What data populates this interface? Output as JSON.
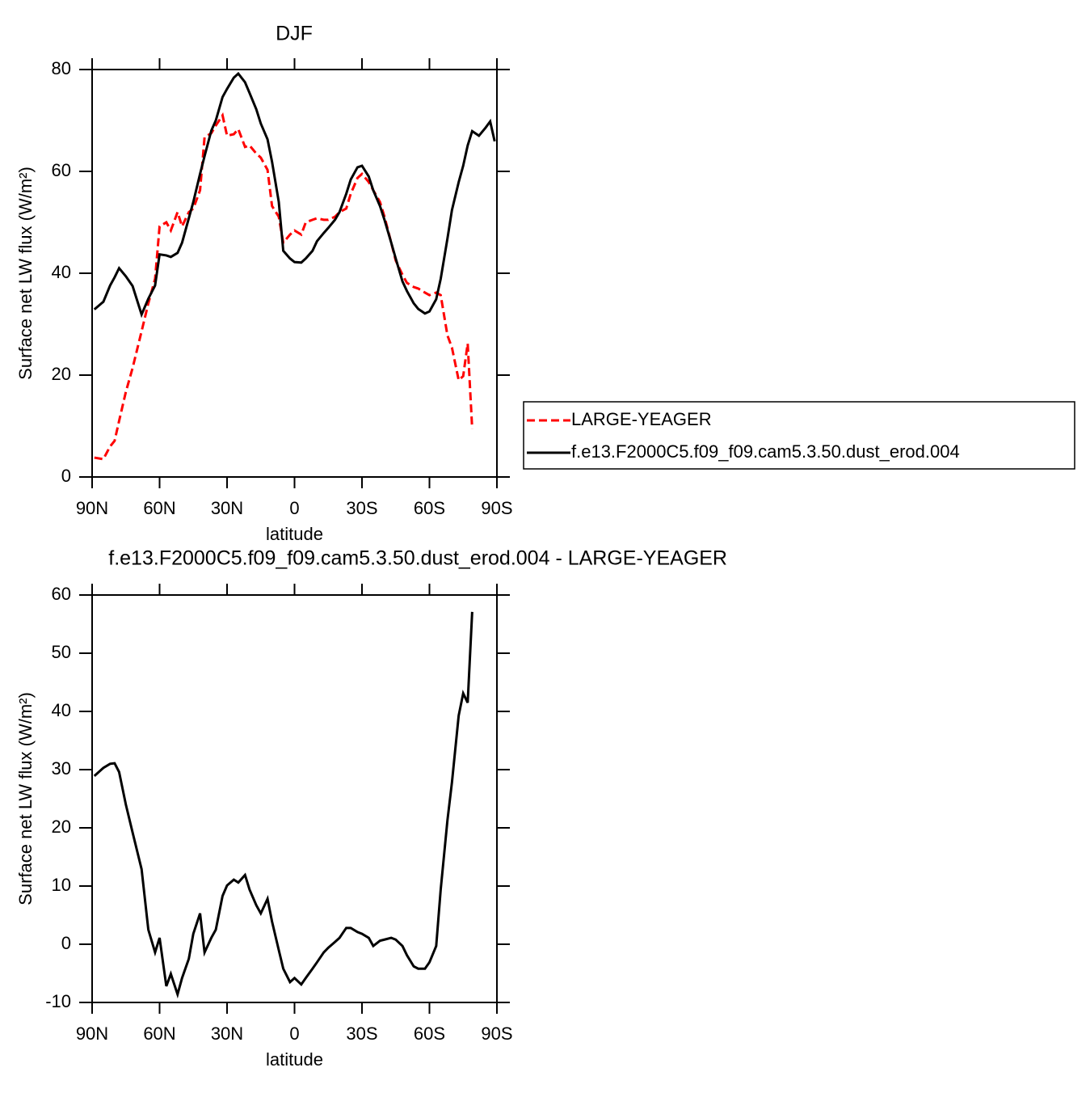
{
  "chart_data": [
    {
      "type": "line",
      "title": "DJF",
      "x_label": "latitude",
      "y_label": "Surface net LW flux (W/m²)",
      "x": [
        89,
        85,
        82,
        80,
        78,
        75,
        72,
        68,
        65,
        62,
        60,
        57,
        55,
        52,
        50,
        47,
        45,
        42,
        40,
        37,
        35,
        32,
        30,
        27,
        25,
        22,
        20,
        17,
        15,
        12,
        10,
        7,
        5,
        2,
        0,
        -3,
        -5,
        -8,
        -10,
        -13,
        -15,
        -18,
        -20,
        -23,
        -25,
        -28,
        -30,
        -33,
        -35,
        -38,
        -40,
        -43,
        -45,
        -48,
        -50,
        -53,
        -55,
        -58,
        -60,
        -63,
        -65,
        -68,
        -70,
        -73,
        -75,
        -77,
        -79,
        -82,
        -85,
        -87,
        -89
      ],
      "series": [
        {
          "name": "LARGE-YEAGER",
          "color": "#ff0000",
          "line_style": "dashed",
          "values": [
            3.8,
            3.5,
            6,
            7.1,
            11,
            16.7,
            21.4,
            28.6,
            34.1,
            38.9,
            49.2,
            50,
            48.4,
            52,
            49.2,
            52,
            52.7,
            56.3,
            66.7,
            67.5,
            69,
            71,
            67,
            67.3,
            68.3,
            64.8,
            65.1,
            63.5,
            62.7,
            60.3,
            53.2,
            51.1,
            46,
            47.6,
            48.4,
            47.6,
            50,
            50.5,
            50.8,
            50.5,
            50.5,
            51.1,
            52,
            52.7,
            55.6,
            58.7,
            59.5,
            57.9,
            56.3,
            54,
            51.1,
            46,
            42.5,
            39.7,
            38.1,
            37.3,
            37,
            36.2,
            35.7,
            36.2,
            35.7,
            27.8,
            25.4,
            19,
            19.8,
            26.2,
            9.5,
            null,
            null,
            null,
            null
          ]
        },
        {
          "name": "f.e13.F2000C5.f09_f09.cam5.3.50.dust_erod.004",
          "color": "#000000",
          "line_style": "solid",
          "values": [
            32.9,
            34.4,
            37.6,
            39.2,
            41,
            39.4,
            37.5,
            31.9,
            35,
            37.6,
            43.7,
            43.5,
            43.2,
            44,
            46,
            50.8,
            54,
            59.5,
            63,
            68,
            70,
            74.6,
            76.2,
            78.4,
            79.2,
            77.5,
            75.4,
            72.2,
            69.4,
            66.3,
            61.9,
            54,
            44.4,
            42.9,
            42.2,
            42.1,
            42.9,
            44.4,
            46.3,
            47.9,
            48.9,
            50.5,
            52,
            55.6,
            58.4,
            60.8,
            61.1,
            59,
            56.3,
            53.2,
            50.5,
            46,
            42.9,
            38.4,
            36.5,
            34.1,
            33,
            32.1,
            32.5,
            34.9,
            38.9,
            46.8,
            52.4,
            57.9,
            61.1,
            65.1,
            67.9,
            67,
            68.6,
            69.8,
            65.9
          ]
        }
      ],
      "xlim": [
        90,
        -90
      ],
      "xticks": [
        {
          "value": 90,
          "label": "90N"
        },
        {
          "value": 60,
          "label": "60N"
        },
        {
          "value": 30,
          "label": "30N"
        },
        0,
        {
          "value": -30,
          "label": "30S"
        },
        {
          "value": -60,
          "label": "60S"
        },
        {
          "value": -90,
          "label": "90S"
        }
      ],
      "ylim": [
        0,
        80
      ],
      "yticks": [
        0,
        20,
        40,
        60,
        80
      ],
      "legend": "right"
    },
    {
      "type": "line",
      "title": "f.e13.F2000C5.f09_f09.cam5.3.50.dust_erod.004 - LARGE-YEAGER",
      "x_label": "latitude",
      "y_label": "Surface net LW flux (W/m²)",
      "x": [
        89,
        85,
        82,
        80,
        78,
        75,
        72,
        68,
        65,
        62,
        60,
        57,
        55,
        52,
        50,
        47,
        45,
        42,
        40,
        37,
        35,
        32,
        30,
        27,
        25,
        22,
        20,
        17,
        15,
        12,
        10,
        7,
        5,
        2,
        0,
        -3,
        -5,
        -8,
        -10,
        -13,
        -15,
        -18,
        -20,
        -23,
        -25,
        -28,
        -30,
        -33,
        -35,
        -38,
        -40,
        -43,
        -45,
        -48,
        -50,
        -53,
        -55,
        -58,
        -60,
        -63,
        -65,
        -68,
        -70,
        -73,
        -75,
        -77,
        -79,
        -82,
        -85,
        -87,
        -89
      ],
      "values": [
        28.9,
        30.3,
        31,
        31.1,
        29.6,
        24,
        19.2,
        12.9,
        2.5,
        -1.4,
        1.1,
        -7.2,
        -5.1,
        -8.6,
        -5.8,
        -2.5,
        1.8,
        5.3,
        -1.4,
        1.1,
        2.5,
        8.3,
        10.1,
        11.1,
        10.6,
        11.9,
        9.4,
        6.7,
        5.3,
        7.8,
        3.9,
        -1,
        -4.2,
        -6.5,
        -5.8,
        -6.9,
        -5.8,
        -4.2,
        -3.1,
        -1.4,
        -0.6,
        0.4,
        1.1,
        2.8,
        2.8,
        2.1,
        1.8,
        1.1,
        -0.3,
        0.6,
        0.8,
        1.1,
        0.8,
        -0.3,
        -1.9,
        -3.8,
        -4.2,
        -4.2,
        -3.1,
        -0.3,
        9.4,
        21.3,
        27.8,
        39.3,
        43.1,
        41.5,
        57.1,
        null,
        null,
        null,
        null
      ],
      "color": "#000000",
      "line_style": "solid",
      "xlim": [
        90,
        -90
      ],
      "xticks": [
        {
          "value": 90,
          "label": "90N"
        },
        {
          "value": 60,
          "label": "60N"
        },
        {
          "value": 30,
          "label": "30N"
        },
        0,
        {
          "value": -30,
          "label": "30S"
        },
        {
          "value": -60,
          "label": "60S"
        },
        {
          "value": -90,
          "label": "90S"
        }
      ],
      "ylim": [
        -10,
        60
      ],
      "yticks": [
        -10,
        0,
        10,
        20,
        30,
        40,
        50,
        60
      ]
    }
  ]
}
